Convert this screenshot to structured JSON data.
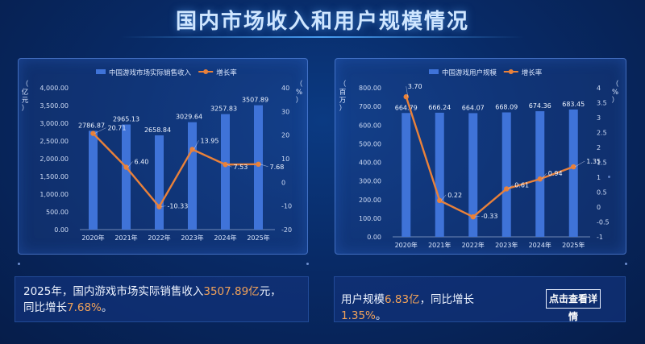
{
  "page": {
    "title": "国内市场收入和用户规模情况",
    "colors": {
      "bar": "#3f73d8",
      "line": "#e9813a",
      "accent_text": "#f0a25a"
    }
  },
  "chart_data": [
    {
      "type": "bar",
      "categories": [
        "2020年",
        "2021年",
        "2022年",
        "2023年",
        "2024年",
        "2025年"
      ],
      "series": [
        {
          "name": "中国游戏市场实际销售收入",
          "type": "bar",
          "axis": "left",
          "values": [
            2786.87,
            2965.13,
            2658.84,
            3029.64,
            3257.83,
            3507.89
          ],
          "labels": [
            "2786.87",
            "2965.13",
            "2658.84",
            "3029.64",
            "3257.83",
            "3507.89"
          ]
        },
        {
          "name": "增长率",
          "type": "line",
          "axis": "right",
          "values": [
            20.71,
            6.4,
            -10.33,
            13.95,
            7.53,
            7.68
          ],
          "labels": [
            "20.71",
            "6.40",
            "-10.33",
            "13.95",
            "7.53",
            "7.68"
          ]
        }
      ],
      "ylabel_left": "（亿元）",
      "ylabel_right": "（%）",
      "ylim_left": [
        0,
        4000
      ],
      "ylim_right": [
        -20,
        40
      ],
      "left_ticks": [
        "0.00",
        "500.00",
        "1,000.00",
        "1,500.00",
        "2,000.00",
        "2,500.00",
        "3,000.00",
        "3,500.00",
        "4,000.00"
      ],
      "right_ticks": [
        "-20",
        "-10",
        "0",
        "10",
        "20",
        "30",
        "40"
      ],
      "legend_position": "top-center"
    },
    {
      "type": "bar",
      "categories": [
        "2020年",
        "2021年",
        "2022年",
        "2023年",
        "2024年",
        "2025年"
      ],
      "series": [
        {
          "name": "中国游戏用户规模",
          "type": "bar",
          "axis": "left",
          "values": [
            664.79,
            666.24,
            664.07,
            668.09,
            674.36,
            683.45
          ],
          "labels": [
            "664.79",
            "666.24",
            "664.07",
            "668.09",
            "674.36",
            "683.45"
          ]
        },
        {
          "name": "增长率",
          "type": "line",
          "axis": "right",
          "values": [
            3.7,
            0.22,
            -0.33,
            0.61,
            0.94,
            1.35
          ],
          "labels": [
            "3.70",
            "0.22",
            "-0.33",
            "0.61",
            "0.94",
            "1.35"
          ]
        }
      ],
      "ylabel_left": "（百万）",
      "ylabel_right": "（%）",
      "ylim_left": [
        0,
        800
      ],
      "ylim_right": [
        -1,
        4
      ],
      "left_ticks": [
        "0.00",
        "100.00",
        "200.00",
        "300.00",
        "400.00",
        "500.00",
        "600.00",
        "700.00",
        "800.00"
      ],
      "right_ticks": [
        "-1",
        "-0.5",
        "0",
        "0.5",
        "1",
        "1.5",
        "2",
        "2.5",
        "3",
        "3.5",
        "4"
      ],
      "legend_position": "top-center"
    }
  ],
  "notes": {
    "left": {
      "p1": "2025年，国内游戏市场实际销售收入",
      "v1": "3507.89亿",
      "p2": "元，",
      "p3": "同比增长",
      "v2": "7.68%",
      "p4": "。"
    },
    "right": {
      "p1": "用户规模",
      "v1": "6.83亿",
      "p2": "，同比增长",
      "v2": "1.35%",
      "p3": "。"
    },
    "link_label": "点击查看详情"
  }
}
